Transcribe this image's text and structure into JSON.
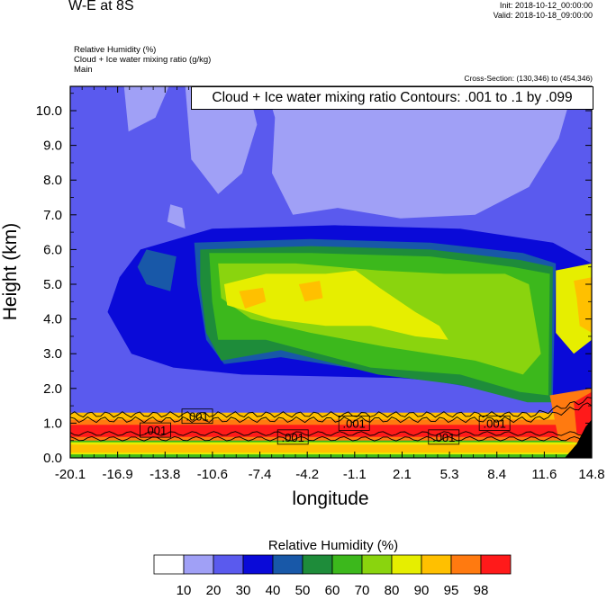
{
  "header": {
    "title": "W-E at 8S",
    "init": "Init: 2018-10-12_00:00:00",
    "valid": "Valid: 2018-10-18_09:00:00",
    "fields": [
      "Relative Humidity   (%)",
      "Cloud + Ice water mixing ratio   (g/kg)",
      "Main"
    ],
    "cross_section": "Cross-Section: (130,346) to (454,346)"
  },
  "contour_info": "Cloud + Ice water mixing ratio Contours: .001 to .1 by .099",
  "chart_data": {
    "type": "heatmap",
    "xlabel": "longitude",
    "ylabel": "Height (km)",
    "xlim": [
      -20.1,
      14.8
    ],
    "ylim": [
      0.0,
      10.7
    ],
    "x_ticks": [
      "-20.1",
      "-16.9",
      "-13.8",
      "-10.6",
      "-7.4",
      "-4.2",
      "-1.1",
      "2.1",
      "5.3",
      "8.4",
      "11.6",
      "14.8"
    ],
    "y_ticks": [
      "0.0",
      "1.0",
      "2.0",
      "3.0",
      "4.0",
      "5.0",
      "6.0",
      "7.0",
      "8.0",
      "9.0",
      "10.0"
    ],
    "colorbar": {
      "title": "Relative Humidity   (%)",
      "labels": [
        "10",
        "20",
        "30",
        "40",
        "50",
        "60",
        "70",
        "80",
        "90",
        "95",
        "98"
      ],
      "colors": [
        "#ffffff",
        "#a0a0f6",
        "#5a5aee",
        "#0a0ad8",
        "#1858a8",
        "#1e8c3a",
        "#3cb81c",
        "#8ad40e",
        "#e6ee00",
        "#ffc000",
        "#ff7a10",
        "#ff1a1a"
      ]
    },
    "contour_labels": [
      ".001",
      ".001",
      ".001",
      ".001",
      ".001",
      ".001"
    ],
    "contour_label_positions": [
      [
        -11.6,
        1.2
      ],
      [
        -14.4,
        0.8
      ],
      [
        -5.2,
        0.6
      ],
      [
        -1.1,
        1.0
      ],
      [
        4.9,
        0.6
      ],
      [
        8.3,
        1.0
      ]
    ],
    "rh_regions": [
      {
        "level": "20",
        "polygon": [
          [
            -20.1,
            10.7
          ],
          [
            14.8,
            10.7
          ],
          [
            14.8,
            1.1
          ],
          [
            -20.1,
            1.1
          ]
        ]
      },
      {
        "level": "10",
        "polygon": [
          [
            -16.5,
            10.7
          ],
          [
            -13.5,
            10.7
          ],
          [
            -14.4,
            9.8
          ],
          [
            -16.2,
            9.4
          ]
        ]
      },
      {
        "level": "10",
        "polygon": [
          [
            -12.4,
            10.7
          ],
          [
            -8.2,
            10.7
          ],
          [
            -7.6,
            9.6
          ],
          [
            -8.6,
            8.2
          ],
          [
            -10.2,
            7.6
          ],
          [
            -12.0,
            8.6
          ]
        ]
      },
      {
        "level": "10",
        "polygon": [
          [
            -7.0,
            10.7
          ],
          [
            13.6,
            10.7
          ],
          [
            12.6,
            9.2
          ],
          [
            10.6,
            7.8
          ],
          [
            7.0,
            7.0
          ],
          [
            2.0,
            6.9
          ],
          [
            -2.2,
            7.2
          ],
          [
            -5.2,
            7.0
          ],
          [
            -6.6,
            8.2
          ],
          [
            -6.4,
            9.8
          ]
        ]
      },
      {
        "level": "10",
        "polygon": [
          [
            -13.6,
            6.8
          ],
          [
            -12.4,
            6.6
          ],
          [
            -12.6,
            7.2
          ],
          [
            -13.4,
            7.3
          ]
        ]
      },
      {
        "level": "10",
        "polygon": [
          [
            -15.6,
            4.2
          ],
          [
            -13.8,
            3.8
          ],
          [
            -14.4,
            4.6
          ]
        ]
      },
      {
        "level": "30",
        "polygon": [
          [
            -15.4,
            6.0
          ],
          [
            -10.6,
            6.6
          ],
          [
            -2.4,
            6.7
          ],
          [
            6.0,
            6.6
          ],
          [
            12.2,
            6.2
          ],
          [
            14.8,
            5.6
          ],
          [
            14.8,
            1.3
          ],
          [
            13.0,
            1.4
          ],
          [
            10.5,
            2.0
          ],
          [
            2.0,
            2.3
          ],
          [
            -8.6,
            2.4
          ],
          [
            -13.2,
            2.6
          ],
          [
            -16.0,
            3.0
          ],
          [
            -17.6,
            4.2
          ],
          [
            -16.8,
            5.2
          ]
        ]
      },
      {
        "level": "40",
        "polygon": [
          [
            -11.8,
            6.2
          ],
          [
            -4.0,
            6.3
          ],
          [
            4.0,
            6.2
          ],
          [
            10.2,
            5.9
          ],
          [
            12.4,
            5.6
          ],
          [
            12.2,
            1.8
          ],
          [
            10.0,
            1.8
          ],
          [
            3.0,
            2.3
          ],
          [
            -6.0,
            2.9
          ],
          [
            -9.8,
            2.7
          ],
          [
            -11.0,
            3.4
          ],
          [
            -11.6,
            5.0
          ]
        ]
      },
      {
        "level": "40",
        "polygon": [
          [
            -15.0,
            6.0
          ],
          [
            -13.0,
            5.8
          ],
          [
            -13.4,
            4.8
          ],
          [
            -15.0,
            5.0
          ],
          [
            -15.6,
            5.5
          ]
        ]
      },
      {
        "level": "50",
        "polygon": [
          [
            -11.4,
            6.0
          ],
          [
            -4.0,
            6.1
          ],
          [
            4.0,
            6.0
          ],
          [
            10.0,
            5.7
          ],
          [
            12.2,
            5.5
          ],
          [
            12.1,
            1.6
          ],
          [
            10.5,
            1.6
          ],
          [
            6.0,
            2.1
          ],
          [
            0.5,
            2.4
          ],
          [
            -6.0,
            3.1
          ],
          [
            -10.0,
            2.8
          ],
          [
            -11.0,
            3.6
          ],
          [
            -11.4,
            5.0
          ]
        ]
      },
      {
        "level": "60",
        "polygon": [
          [
            -10.8,
            5.9
          ],
          [
            -4.0,
            5.9
          ],
          [
            4.0,
            5.8
          ],
          [
            9.5,
            5.5
          ],
          [
            12.0,
            5.3
          ],
          [
            11.9,
            1.8
          ],
          [
            10.0,
            1.9
          ],
          [
            6.0,
            2.4
          ],
          [
            0.0,
            2.6
          ],
          [
            -7.0,
            3.4
          ],
          [
            -10.2,
            3.4
          ],
          [
            -10.6,
            4.5
          ]
        ]
      },
      {
        "level": "70",
        "polygon": [
          [
            -10.2,
            5.6
          ],
          [
            -5.0,
            5.6
          ],
          [
            0.5,
            5.4
          ],
          [
            5.0,
            5.3
          ],
          [
            9.0,
            5.3
          ],
          [
            10.6,
            5.0
          ],
          [
            11.4,
            3.0
          ],
          [
            10.2,
            2.4
          ],
          [
            7.0,
            2.8
          ],
          [
            1.0,
            3.2
          ],
          [
            -4.0,
            3.6
          ],
          [
            -8.0,
            4.0
          ],
          [
            -10.0,
            4.6
          ]
        ]
      },
      {
        "level": "80",
        "polygon": [
          [
            -9.8,
            5.0
          ],
          [
            -7.0,
            5.3
          ],
          [
            -3.0,
            5.3
          ],
          [
            -1.0,
            5.4
          ],
          [
            0.6,
            4.9
          ],
          [
            3.0,
            4.2
          ],
          [
            4.6,
            3.8
          ],
          [
            5.2,
            3.4
          ],
          [
            3.0,
            3.5
          ],
          [
            0.0,
            3.8
          ],
          [
            -3.0,
            3.8
          ],
          [
            -6.6,
            4.0
          ],
          [
            -9.6,
            4.4
          ]
        ]
      },
      {
        "level": "80",
        "polygon": [
          [
            12.4,
            5.4
          ],
          [
            14.8,
            5.6
          ],
          [
            14.8,
            3.4
          ],
          [
            13.6,
            3.0
          ],
          [
            12.4,
            3.6
          ]
        ]
      },
      {
        "level": "90",
        "polygon": [
          [
            13.6,
            5.1
          ],
          [
            14.8,
            5.2
          ],
          [
            14.8,
            3.6
          ],
          [
            14.0,
            3.8
          ],
          [
            13.8,
            4.6
          ]
        ]
      },
      {
        "level": "90",
        "polygon": [
          [
            -8.8,
            4.8
          ],
          [
            -7.2,
            4.9
          ],
          [
            -7.0,
            4.5
          ],
          [
            -8.4,
            4.3
          ]
        ]
      },
      {
        "level": "90",
        "polygon": [
          [
            -4.8,
            5.0
          ],
          [
            -3.4,
            5.1
          ],
          [
            -3.2,
            4.6
          ],
          [
            -4.4,
            4.5
          ]
        ]
      },
      {
        "level": "90",
        "polygon": [
          [
            -20.1,
            1.3
          ],
          [
            14.8,
            1.3
          ],
          [
            14.8,
            0.5
          ],
          [
            -20.1,
            0.5
          ]
        ]
      },
      {
        "level": "95",
        "polygon": [
          [
            -20.1,
            1.1
          ],
          [
            14.8,
            1.1
          ],
          [
            14.8,
            0.4
          ],
          [
            -20.1,
            0.4
          ]
        ]
      },
      {
        "level": "98",
        "polygon": [
          [
            -20.1,
            0.95
          ],
          [
            14.8,
            0.95
          ],
          [
            14.8,
            0.6
          ],
          [
            -20.1,
            0.6
          ]
        ]
      },
      {
        "level": "60",
        "polygon": [
          [
            -20.1,
            0.5
          ],
          [
            14.8,
            0.5
          ],
          [
            14.8,
            0.0
          ],
          [
            -20.1,
            0.0
          ]
        ]
      },
      {
        "level": "80",
        "polygon": [
          [
            -20.1,
            0.45
          ],
          [
            14.8,
            0.45
          ],
          [
            14.8,
            0.1
          ],
          [
            -20.1,
            0.1
          ]
        ]
      },
      {
        "level": "90",
        "polygon": [
          [
            -20.1,
            0.38
          ],
          [
            14.8,
            0.38
          ],
          [
            14.8,
            0.15
          ],
          [
            -20.1,
            0.15
          ]
        ]
      },
      {
        "level": "95",
        "polygon": [
          [
            12.0,
            1.8
          ],
          [
            14.8,
            2.0
          ],
          [
            14.8,
            0.4
          ],
          [
            12.6,
            0.5
          ]
        ]
      },
      {
        "level": "98",
        "polygon": [
          [
            13.6,
            1.6
          ],
          [
            14.8,
            1.9
          ],
          [
            14.8,
            0.6
          ],
          [
            13.8,
            0.7
          ]
        ]
      }
    ],
    "terrain_polygon": [
      [
        13.0,
        0.0
      ],
      [
        14.8,
        0.0
      ],
      [
        14.8,
        1.1
      ],
      [
        14.4,
        0.9
      ],
      [
        13.8,
        0.4
      ]
    ]
  }
}
